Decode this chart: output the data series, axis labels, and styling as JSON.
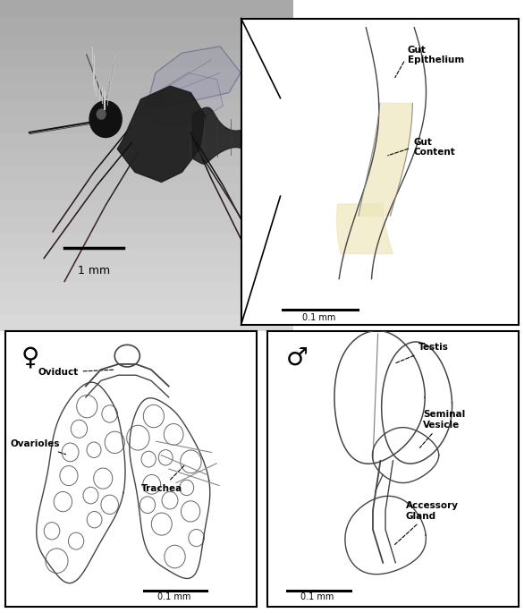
{
  "bg_color": "#ffffff",
  "line_color": "#444444",
  "scale_bar_main": "1 mm",
  "scale_bar_inset": "0.1 mm",
  "female_symbol": "♀",
  "male_symbol": "♂",
  "photo_bg": "#c8c0b0",
  "panel_layout": {
    "main": [
      0.0,
      0.46,
      0.56,
      0.54
    ],
    "gut": [
      0.46,
      0.47,
      0.53,
      0.5
    ],
    "fem": [
      0.01,
      0.01,
      0.48,
      0.45
    ],
    "male": [
      0.51,
      0.01,
      0.48,
      0.45
    ]
  }
}
